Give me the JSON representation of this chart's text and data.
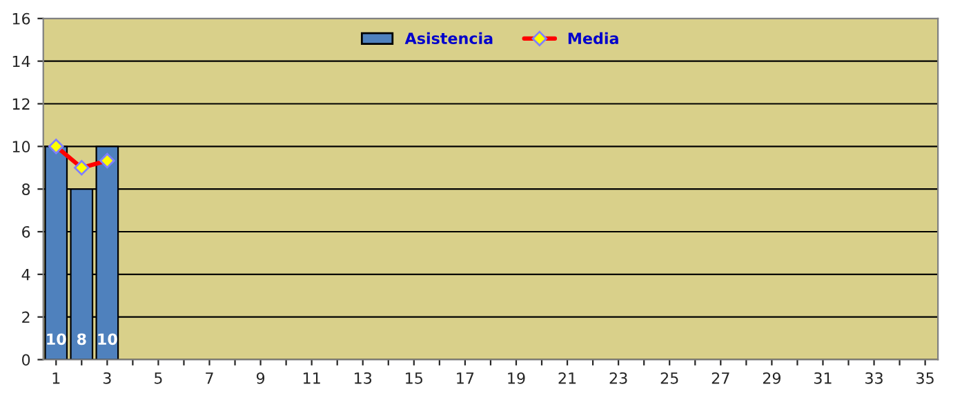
{
  "chart_data": {
    "type": "bar",
    "categories": [
      "1",
      null,
      "3",
      null,
      "5",
      null,
      "7",
      null,
      "9",
      null,
      "11",
      null,
      "13",
      null,
      "15",
      null,
      "17",
      null,
      "19",
      null,
      "21",
      null,
      "23",
      null,
      "25",
      null,
      "27",
      null,
      "29",
      null,
      "31",
      null,
      "33",
      null,
      "35"
    ],
    "series": [
      {
        "name": "Asistencia",
        "color": "#4f81bd",
        "values": [
          10,
          8,
          10,
          null,
          null,
          null,
          null,
          null,
          null,
          null,
          null,
          null,
          null,
          null,
          null,
          null,
          null,
          null,
          null,
          null,
          null,
          null,
          null,
          null,
          null,
          null,
          null,
          null,
          null,
          null,
          null,
          null,
          null,
          null,
          null
        ],
        "value_labels": [
          "10",
          "8",
          "10",
          null,
          null,
          null,
          null,
          null,
          null,
          null,
          null,
          null,
          null,
          null,
          null,
          null,
          null,
          null,
          null,
          null,
          null,
          null,
          null,
          null,
          null,
          null,
          null,
          null,
          null,
          null,
          null,
          null,
          null,
          null,
          null
        ]
      },
      {
        "name": "Media",
        "type": "line",
        "color": "#ff0000",
        "marker": "diamond",
        "values": [
          10,
          9,
          9.33,
          null,
          null,
          null,
          null,
          null,
          null,
          null,
          null,
          null,
          null,
          null,
          null,
          null,
          null,
          null,
          null,
          null,
          null,
          null,
          null,
          null,
          null,
          null,
          null,
          null,
          null,
          null,
          null,
          null,
          null,
          null,
          null
        ]
      }
    ],
    "ylim": [
      0,
      16
    ],
    "yticks": [
      0,
      2,
      4,
      6,
      8,
      10,
      12,
      14,
      16
    ],
    "grid": "y",
    "legend": "top"
  }
}
